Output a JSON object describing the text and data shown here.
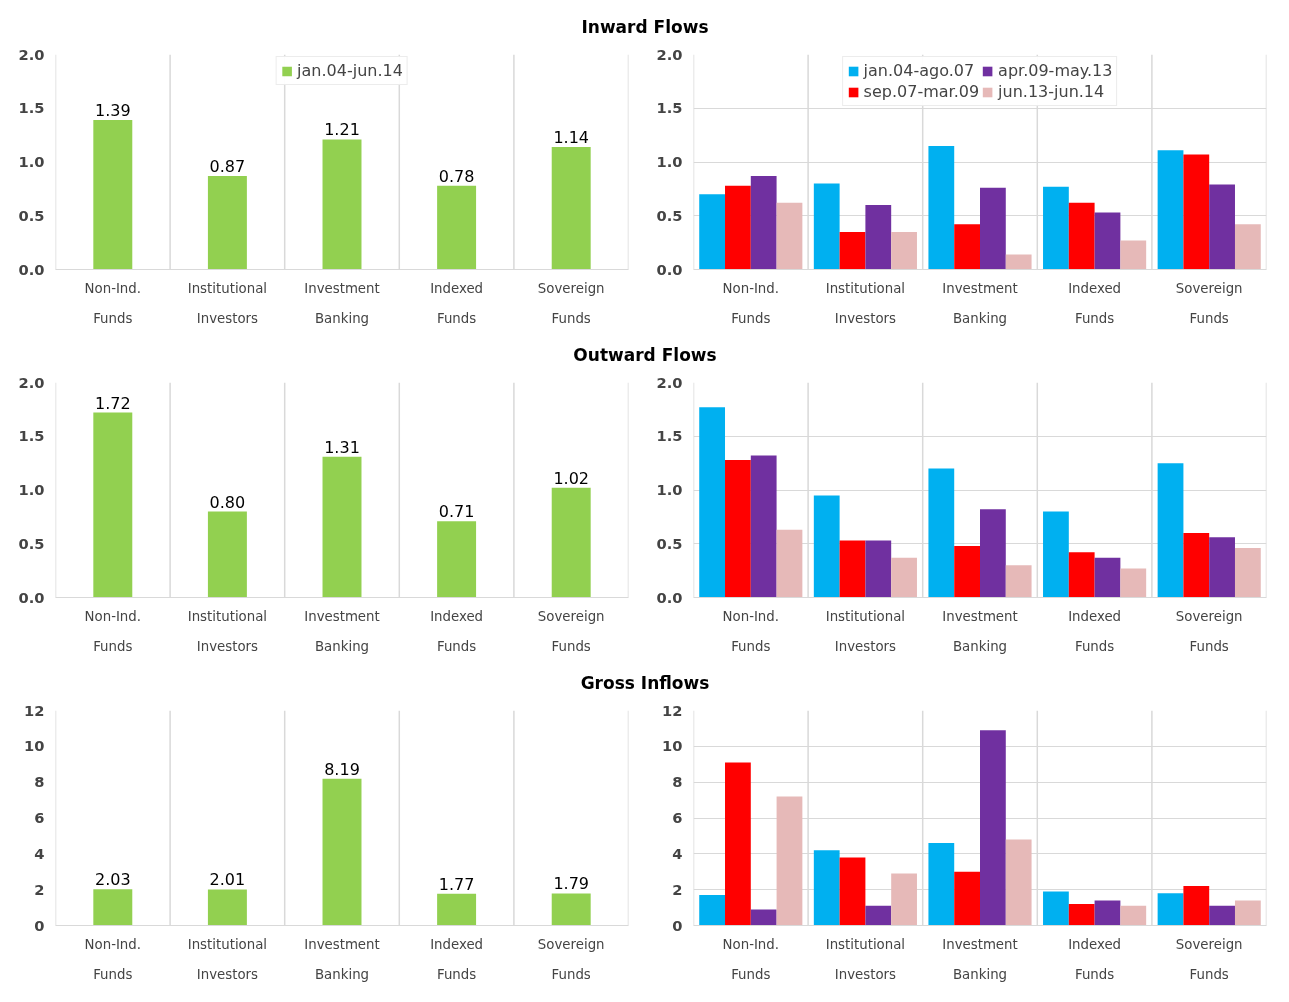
{
  "chart_data": [
    {
      "type": "bar",
      "title": "Inward Flows",
      "categories": [
        "Non-Ind.\nFunds",
        "Institutional\nInvestors",
        "Investment\nBanking",
        "Indexed\nFunds",
        "Sovereign\nFunds"
      ],
      "series": [
        {
          "name": "jan.04-jun.14",
          "color": "#92d050",
          "values": [
            1.39,
            0.87,
            1.21,
            0.78,
            1.14
          ],
          "value_labels": [
            "1.39",
            "0.87",
            "1.21",
            "0.78",
            "1.14"
          ]
        }
      ],
      "ylim": [
        0,
        2
      ],
      "yticks": [
        {
          "value": 0,
          "label": "0.0"
        },
        {
          "value": 0.5,
          "label": "0.5"
        },
        {
          "value": 1,
          "label": "1.0"
        },
        {
          "value": 1.5,
          "label": "1.5"
        },
        {
          "value": 2,
          "label": "2.0"
        }
      ],
      "legend": "top"
    },
    {
      "type": "bar",
      "categories": [
        "Non-Ind.\nFunds",
        "Institutional\nInvestors",
        "Investment\nBanking",
        "Indexed\nFunds",
        "Sovereign\nFunds"
      ],
      "series": [
        {
          "name": "jan.04-ago.07",
          "color": "#00b0f0",
          "values": [
            0.7,
            0.8,
            1.15,
            0.77,
            1.11
          ]
        },
        {
          "name": "sep.07-mar.09",
          "color": "#ff0000",
          "values": [
            0.78,
            0.35,
            0.42,
            0.62,
            1.07
          ]
        },
        {
          "name": "apr.09-may.13",
          "color": "#7030a0",
          "values": [
            0.87,
            0.6,
            0.76,
            0.53,
            0.79
          ]
        },
        {
          "name": "jun.13-jun.14",
          "color": "#e6b9b8",
          "values": [
            0.62,
            0.35,
            0.14,
            0.27,
            0.42
          ]
        }
      ],
      "ylim": [
        0,
        2
      ],
      "yticks": [
        {
          "value": 0,
          "label": "0.0"
        },
        {
          "value": 0.5,
          "label": "0.5"
        },
        {
          "value": 1,
          "label": "1.0"
        },
        {
          "value": 1.5,
          "label": "1.5"
        },
        {
          "value": 2,
          "label": "2.0"
        }
      ],
      "grid": "y",
      "legend": "top"
    },
    {
      "type": "bar",
      "title": "Outward Flows",
      "categories": [
        "Non-Ind.\nFunds",
        "Institutional\nInvestors",
        "Investment\nBanking",
        "Indexed\nFunds",
        "Sovereign\nFunds"
      ],
      "series": [
        {
          "color": "#92d050",
          "values": [
            1.72,
            0.8,
            1.31,
            0.71,
            1.02
          ],
          "value_labels": [
            "1.72",
            "0.80",
            "1.31",
            "0.71",
            "1.02"
          ]
        }
      ],
      "ylim": [
        0,
        2
      ],
      "yticks": [
        {
          "value": 0,
          "label": "0.0"
        },
        {
          "value": 0.5,
          "label": "0.5"
        },
        {
          "value": 1,
          "label": "1.0"
        },
        {
          "value": 1.5,
          "label": "1.5"
        },
        {
          "value": 2,
          "label": "2.0"
        }
      ]
    },
    {
      "type": "bar",
      "categories": [
        "Non-Ind.\nFunds",
        "Institutional\nInvestors",
        "Investment\nBanking",
        "Indexed\nFunds",
        "Sovereign\nFunds"
      ],
      "series": [
        {
          "color": "#00b0f0",
          "values": [
            1.77,
            0.95,
            1.2,
            0.8,
            1.25
          ]
        },
        {
          "color": "#ff0000",
          "values": [
            1.28,
            0.53,
            0.48,
            0.42,
            0.6
          ]
        },
        {
          "color": "#7030a0",
          "values": [
            1.32,
            0.53,
            0.82,
            0.37,
            0.56
          ]
        },
        {
          "color": "#e6b9b8",
          "values": [
            0.63,
            0.37,
            0.3,
            0.27,
            0.46
          ]
        }
      ],
      "ylim": [
        0,
        2
      ],
      "yticks": [
        {
          "value": 0,
          "label": "0.0"
        },
        {
          "value": 0.5,
          "label": "0.5"
        },
        {
          "value": 1,
          "label": "1.0"
        },
        {
          "value": 1.5,
          "label": "1.5"
        },
        {
          "value": 2,
          "label": "2.0"
        }
      ],
      "grid": "y"
    },
    {
      "type": "bar",
      "title": "Gross Inflows",
      "categories": [
        "Non-Ind.\nFunds",
        "Institutional\nInvestors",
        "Investment\nBanking",
        "Indexed\nFunds",
        "Sovereign\nFunds"
      ],
      "series": [
        {
          "color": "#92d050",
          "values": [
            2.03,
            2.01,
            8.19,
            1.77,
            1.79
          ],
          "value_labels": [
            "2.03",
            "2.01",
            "8.19",
            "1.77",
            "1.79"
          ]
        }
      ],
      "ylim": [
        0,
        12
      ],
      "yticks": [
        0,
        2,
        4,
        6,
        8,
        10,
        12
      ]
    },
    {
      "type": "bar",
      "categories": [
        "Non-Ind.\nFunds",
        "Institutional\nInvestors",
        "Investment\nBanking",
        "Indexed\nFunds",
        "Sovereign\nFunds"
      ],
      "series": [
        {
          "color": "#00b0f0",
          "values": [
            1.7,
            4.2,
            4.6,
            1.9,
            1.8
          ]
        },
        {
          "color": "#ff0000",
          "values": [
            9.1,
            3.8,
            3.0,
            1.2,
            2.2
          ]
        },
        {
          "color": "#7030a0",
          "values": [
            0.9,
            1.1,
            10.9,
            1.4,
            1.1
          ]
        },
        {
          "color": "#e6b9b8",
          "values": [
            7.2,
            2.9,
            4.8,
            1.1,
            1.4
          ]
        }
      ],
      "ylim": [
        0,
        12
      ],
      "yticks": [
        0,
        2,
        4,
        6,
        8,
        10,
        12
      ],
      "grid": "y"
    }
  ]
}
